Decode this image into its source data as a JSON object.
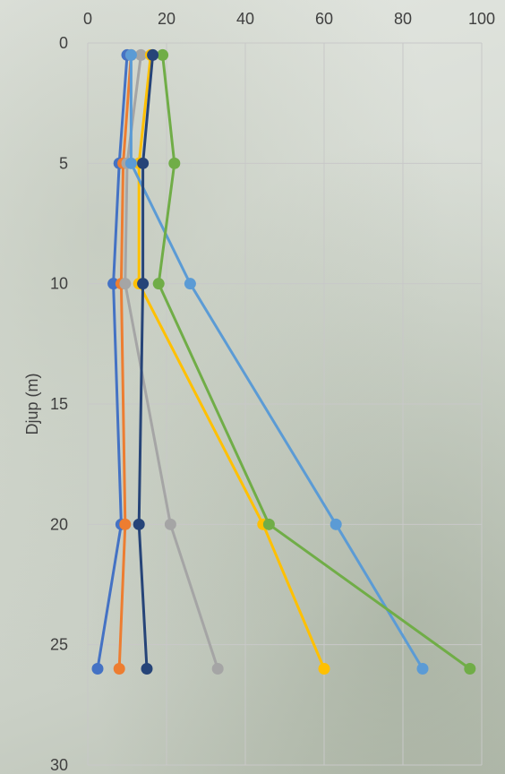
{
  "chart_data": {
    "type": "line",
    "title": "",
    "xlabel": "",
    "ylabel": "Djup (m)",
    "xlim": [
      0,
      100
    ],
    "ylim": [
      0,
      30
    ],
    "y_inverted": true,
    "x_axis_position": "top",
    "x_ticks": [
      "0",
      "20",
      "40",
      "60",
      "80",
      "100"
    ],
    "y_ticks": [
      "0",
      "5",
      "10",
      "15",
      "20",
      "25",
      "30"
    ],
    "grid": true,
    "legend": "none",
    "depths": [
      0.5,
      5,
      10,
      20,
      26
    ],
    "series": [
      {
        "color": "#4472C4",
        "x": [
          10,
          8,
          6.5,
          8.5,
          2.5
        ]
      },
      {
        "color": "#ED7D31",
        "x": [
          11,
          9,
          8.5,
          9.5,
          8
        ]
      },
      {
        "color": "#A5A5A5",
        "x": [
          13.5,
          10,
          9.5,
          21,
          33
        ]
      },
      {
        "color": "#FFC000",
        "x": [
          16,
          13,
          13,
          44.5,
          60
        ]
      },
      {
        "color": "#5B9BD5",
        "x": [
          11,
          11,
          26,
          63,
          85
        ]
      },
      {
        "color": "#70AD47",
        "x": [
          19,
          22,
          18,
          46,
          97
        ]
      },
      {
        "color": "#264478",
        "x": [
          16.5,
          14,
          14,
          13,
          15
        ]
      }
    ]
  }
}
